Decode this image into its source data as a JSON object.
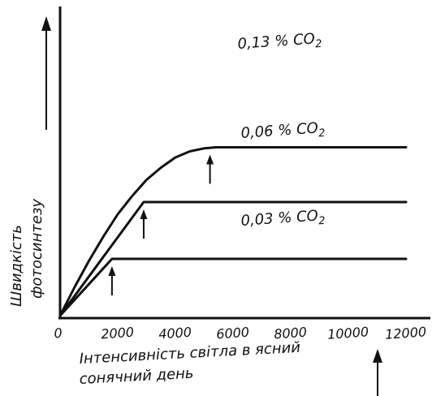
{
  "chart_data": {
    "type": "line",
    "title": "",
    "xlabel_lines": [
      "Інтенсивність світла в ясний",
      "сонячний день"
    ],
    "ylabel_lines": [
      "Швидкість",
      "фотосинтезу"
    ],
    "x_ticks": [
      "0",
      "2000",
      "4000",
      "6000",
      "8000",
      "10000",
      "12000"
    ],
    "x_tick_values": [
      0,
      2000,
      4000,
      6000,
      8000,
      10000,
      12000
    ],
    "xlim": [
      0,
      12000
    ],
    "ylim": [
      0,
      100
    ],
    "grid": false,
    "series": [
      {
        "name": "0,13 % CO2",
        "points": [
          [
            0,
            0
          ],
          [
            500,
            14
          ],
          [
            1000,
            27
          ],
          [
            1500,
            39
          ],
          [
            2000,
            50
          ],
          [
            2500,
            59
          ],
          [
            3000,
            67
          ],
          [
            3500,
            73
          ],
          [
            4000,
            78
          ],
          [
            4500,
            81
          ],
          [
            5000,
            82.5
          ],
          [
            5400,
            83
          ],
          [
            6000,
            83
          ],
          [
            8000,
            83
          ],
          [
            10000,
            83
          ],
          [
            12000,
            83
          ]
        ],
        "saturation_x": 5200
      },
      {
        "name": "0,06 % CO2",
        "points": [
          [
            0,
            0
          ],
          [
            2900,
            56
          ],
          [
            4000,
            56
          ],
          [
            6000,
            56
          ],
          [
            8000,
            56
          ],
          [
            10000,
            56
          ],
          [
            12000,
            56
          ]
        ],
        "saturation_x": 2900
      },
      {
        "name": "0,03 % CO2",
        "points": [
          [
            0,
            0
          ],
          [
            1800,
            28
          ],
          [
            4000,
            28
          ],
          [
            6000,
            28
          ],
          [
            8000,
            28
          ],
          [
            10000,
            28
          ],
          [
            12000,
            28
          ]
        ],
        "saturation_x": 1800
      }
    ],
    "series_label_parts": [
      {
        "main": "0,13 % CO",
        "sub": "2"
      },
      {
        "main": "0,06 % CO",
        "sub": "2"
      },
      {
        "main": "0,03 % CO",
        "sub": "2"
      }
    ]
  }
}
